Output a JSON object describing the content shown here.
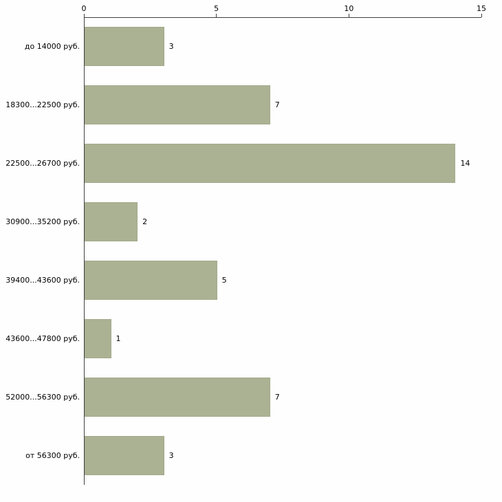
{
  "chart_data": {
    "type": "bar",
    "orientation": "horizontal",
    "title": "",
    "xlabel": "",
    "ylabel": "",
    "categories": [
      "до 14000 руб.",
      "18300...22500 руб.",
      "22500...26700 руб.",
      "30900...35200 руб.",
      "39400...43600 руб.",
      "43600...47800 руб.",
      "52000...56300 руб.",
      "от 56300 руб."
    ],
    "values": [
      3,
      7,
      14,
      2,
      5,
      1,
      7,
      3
    ],
    "xlim": [
      0,
      15
    ],
    "xticks": [
      0,
      5,
      10,
      15
    ],
    "bar_color": "#abb293",
    "bar_border_color": "#a2aa8b",
    "axis_color": "#404040",
    "background_color": "#fefefe",
    "grid": false,
    "legend": false,
    "value_labels": true,
    "axis_position": "top"
  }
}
